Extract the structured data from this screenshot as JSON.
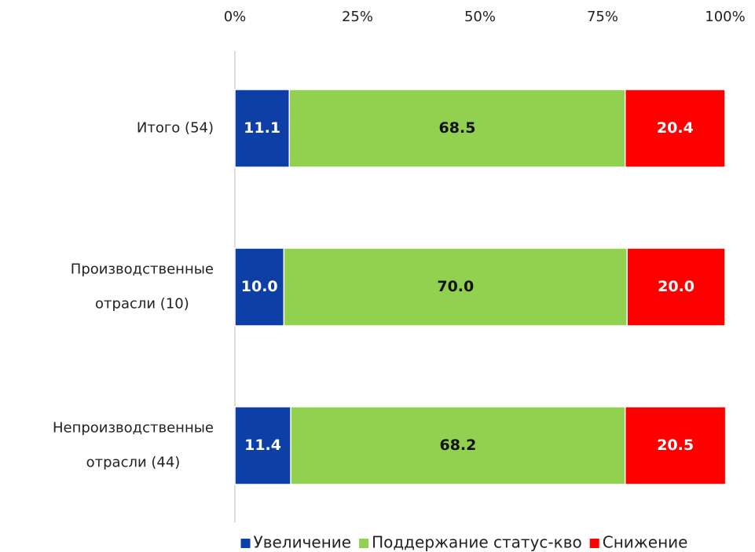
{
  "chart_data": {
    "type": "stacked-bar-horizontal",
    "categories": [
      "Итого (54)",
      "Производственные\nотрасли (10)",
      "Непроизводственные\nотрасли (44)"
    ],
    "series": [
      {
        "name": "Увеличение",
        "color": "#0d3fa6",
        "label_color": "#ffffff",
        "values": [
          11.1,
          10.0,
          11.4
        ],
        "value_labels": [
          "11.1",
          "10.0",
          "11.4"
        ]
      },
      {
        "name": "Поддержание статус-кво",
        "color": "#92d050",
        "label_color": "#111111",
        "values": [
          68.5,
          70.0,
          68.2
        ],
        "value_labels": [
          "68.5",
          "70.0",
          "68.2"
        ]
      },
      {
        "name": "Снижение",
        "color": "#ff0000",
        "label_color": "#ffffff",
        "values": [
          20.4,
          20.0,
          20.5
        ],
        "value_labels": [
          "20.4",
          "20.0",
          "20.5"
        ]
      }
    ],
    "xlim": [
      0,
      100
    ],
    "xticks": [
      {
        "value": 0,
        "label": "0%"
      },
      {
        "value": 25,
        "label": "25%"
      },
      {
        "value": 50,
        "label": "50%"
      },
      {
        "value": 75,
        "label": "75%"
      },
      {
        "value": 100,
        "label": "100%"
      }
    ],
    "legend": "bottom"
  }
}
